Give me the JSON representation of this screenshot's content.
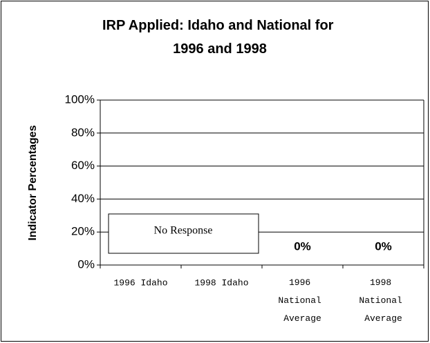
{
  "chart_data": {
    "type": "bar",
    "title": "IRP Applied: Idaho and National for 1996 and 1998",
    "y_label": "Indicator Percentages",
    "categories": [
      "1996 Idaho",
      "1998 Idaho",
      "1996 National Average",
      "1998 National Average"
    ],
    "values": [
      null,
      null,
      0,
      0
    ],
    "value_labels": [
      null,
      null,
      "0%",
      "0%"
    ],
    "annotation": "No Response",
    "ylim": [
      0,
      100
    ],
    "yticks": [
      {
        "value": 0,
        "label": "0%"
      },
      {
        "value": 20,
        "label": "20%"
      },
      {
        "value": 40,
        "label": "40%"
      },
      {
        "value": 60,
        "label": "60%"
      },
      {
        "value": 80,
        "label": "80%"
      },
      {
        "value": 100,
        "label": "100%"
      }
    ],
    "grid": true,
    "color": "#000000"
  }
}
